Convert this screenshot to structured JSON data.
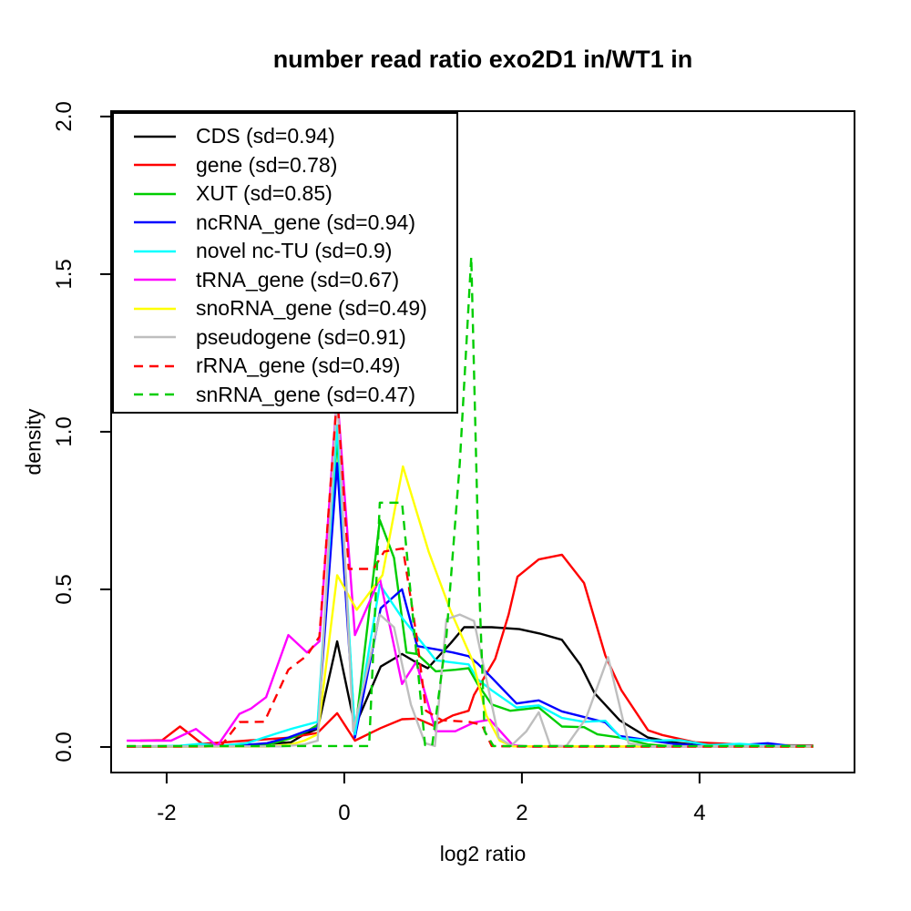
{
  "title": "number read ratio exo2D1 in/WT1 in",
  "chart_data": {
    "type": "line",
    "title": "number read ratio exo2D1 in/WT1 in",
    "xlabel": "log2 ratio",
    "ylabel": "density",
    "xlim": [
      -2.625,
      5.745
    ],
    "ylim": [
      -0.081,
      2.017
    ],
    "x_ticks": [
      -2,
      0,
      2,
      4
    ],
    "y_ticks": [
      "0.0",
      "0.5",
      "1.0",
      "1.5",
      "2.0"
    ],
    "grid": false,
    "legend_position": "topleft",
    "background": "#ffffff",
    "axis_color": "#000000",
    "series": [
      {
        "name": "CDS",
        "label": "CDS (sd=0.94)",
        "color": "#000000",
        "dash": false,
        "points": [
          [
            -2.45,
            0.002
          ],
          [
            -2.0,
            0.002
          ],
          [
            -1.5,
            0.003
          ],
          [
            -1.1,
            0.005
          ],
          [
            -0.85,
            0.01
          ],
          [
            -0.6,
            0.015
          ],
          [
            -0.45,
            0.04
          ],
          [
            -0.3,
            0.058
          ],
          [
            -0.08,
            0.335
          ],
          [
            0.12,
            0.065
          ],
          [
            0.41,
            0.255
          ],
          [
            0.65,
            0.295
          ],
          [
            0.8,
            0.27
          ],
          [
            0.94,
            0.25
          ],
          [
            1.2,
            0.33
          ],
          [
            1.35,
            0.38
          ],
          [
            1.66,
            0.38
          ],
          [
            1.97,
            0.374
          ],
          [
            2.2,
            0.36
          ],
          [
            2.45,
            0.34
          ],
          [
            2.66,
            0.26
          ],
          [
            2.82,
            0.17
          ],
          [
            3.1,
            0.085
          ],
          [
            3.42,
            0.03
          ],
          [
            3.7,
            0.015
          ],
          [
            4.0,
            0.005
          ],
          [
            4.4,
            0.003
          ],
          [
            5.28,
            0.002
          ]
        ]
      },
      {
        "name": "gene",
        "label": "gene (sd=0.78)",
        "color": "#ff0000",
        "dash": false,
        "points": [
          [
            -2.3,
            0.02
          ],
          [
            -2.05,
            0.022
          ],
          [
            -1.85,
            0.065
          ],
          [
            -1.6,
            0.01
          ],
          [
            -1.35,
            0.015
          ],
          [
            -1.1,
            0.02
          ],
          [
            -0.85,
            0.025
          ],
          [
            -0.6,
            0.03
          ],
          [
            -0.3,
            0.045
          ],
          [
            -0.08,
            0.107
          ],
          [
            0.12,
            0.02
          ],
          [
            0.41,
            0.06
          ],
          [
            0.65,
            0.088
          ],
          [
            0.82,
            0.09
          ],
          [
            1.0,
            0.068
          ],
          [
            1.22,
            0.1
          ],
          [
            1.4,
            0.115
          ],
          [
            1.46,
            0.165
          ],
          [
            1.7,
            0.28
          ],
          [
            1.85,
            0.42
          ],
          [
            1.95,
            0.54
          ],
          [
            2.19,
            0.595
          ],
          [
            2.45,
            0.61
          ],
          [
            2.7,
            0.52
          ],
          [
            2.94,
            0.29
          ],
          [
            3.12,
            0.18
          ],
          [
            3.42,
            0.053
          ],
          [
            3.58,
            0.038
          ],
          [
            3.95,
            0.015
          ],
          [
            4.3,
            0.01
          ],
          [
            4.7,
            0.006
          ],
          [
            5.28,
            0.005
          ]
        ]
      },
      {
        "name": "XUT",
        "label": "XUT (sd=0.85)",
        "color": "#00cd00",
        "dash": false,
        "points": [
          [
            -2.45,
            0.001
          ],
          [
            -1.5,
            0.002
          ],
          [
            -1.1,
            0.004
          ],
          [
            -0.85,
            0.008
          ],
          [
            -0.6,
            0.028
          ],
          [
            -0.42,
            0.05
          ],
          [
            -0.3,
            0.07
          ],
          [
            -0.08,
            0.985
          ],
          [
            0.12,
            0.04
          ],
          [
            0.4,
            0.72
          ],
          [
            0.56,
            0.6
          ],
          [
            0.7,
            0.3
          ],
          [
            0.82,
            0.295
          ],
          [
            1.03,
            0.24
          ],
          [
            1.25,
            0.245
          ],
          [
            1.4,
            0.25
          ],
          [
            1.5,
            0.2
          ],
          [
            1.66,
            0.135
          ],
          [
            1.87,
            0.115
          ],
          [
            2.19,
            0.125
          ],
          [
            2.45,
            0.065
          ],
          [
            2.7,
            0.063
          ],
          [
            2.85,
            0.04
          ],
          [
            3.1,
            0.03
          ],
          [
            3.42,
            0.008
          ],
          [
            3.7,
            0.002
          ],
          [
            5.28,
            0.001
          ]
        ]
      },
      {
        "name": "ncRNA_gene",
        "label": "ncRNA_gene (sd=0.94)",
        "color": "#0000ff",
        "dash": false,
        "points": [
          [
            -2.45,
            0.001
          ],
          [
            -1.4,
            0.002
          ],
          [
            -1.05,
            0.008
          ],
          [
            -0.87,
            0.012
          ],
          [
            -0.63,
            0.03
          ],
          [
            -0.42,
            0.052
          ],
          [
            -0.3,
            0.06
          ],
          [
            -0.08,
            0.9
          ],
          [
            0.12,
            0.03
          ],
          [
            0.41,
            0.44
          ],
          [
            0.65,
            0.5
          ],
          [
            0.82,
            0.32
          ],
          [
            1.03,
            0.31
          ],
          [
            1.22,
            0.3
          ],
          [
            1.4,
            0.288
          ],
          [
            1.5,
            0.265
          ],
          [
            1.66,
            0.22
          ],
          [
            1.94,
            0.138
          ],
          [
            2.19,
            0.148
          ],
          [
            2.45,
            0.113
          ],
          [
            2.7,
            0.095
          ],
          [
            2.94,
            0.078
          ],
          [
            3.1,
            0.035
          ],
          [
            3.42,
            0.022
          ],
          [
            3.7,
            0.01
          ],
          [
            4.0,
            0.005
          ],
          [
            4.35,
            0.004
          ],
          [
            4.77,
            0.012
          ],
          [
            5.0,
            0.004
          ],
          [
            5.28,
            0.002
          ]
        ]
      },
      {
        "name": "novel nc-TU",
        "label": "novel nc-TU (sd=0.9)",
        "color": "#00ffff",
        "dash": false,
        "points": [
          [
            -2.45,
            0.001
          ],
          [
            -1.85,
            0.004
          ],
          [
            -1.62,
            0.01
          ],
          [
            -1.4,
            0.004
          ],
          [
            -1.1,
            0.012
          ],
          [
            -0.77,
            0.042
          ],
          [
            -0.59,
            0.058
          ],
          [
            -0.3,
            0.08
          ],
          [
            -0.08,
            1.02
          ],
          [
            0.12,
            0.04
          ],
          [
            0.4,
            0.515
          ],
          [
            0.65,
            0.41
          ],
          [
            0.82,
            0.35
          ],
          [
            1.03,
            0.275
          ],
          [
            1.22,
            0.268
          ],
          [
            1.4,
            0.262
          ],
          [
            1.5,
            0.215
          ],
          [
            1.66,
            0.18
          ],
          [
            1.94,
            0.125
          ],
          [
            2.19,
            0.132
          ],
          [
            2.45,
            0.092
          ],
          [
            2.7,
            0.08
          ],
          [
            2.94,
            0.083
          ],
          [
            3.12,
            0.028
          ],
          [
            3.42,
            0.02
          ],
          [
            3.78,
            0.022
          ],
          [
            4.1,
            0.006
          ],
          [
            4.45,
            0.01
          ],
          [
            4.77,
            0.004
          ],
          [
            5.28,
            0.003
          ]
        ]
      },
      {
        "name": "tRNA_gene",
        "label": "tRNA_gene (sd=0.67)",
        "color": "#ff00ff",
        "dash": false,
        "points": [
          [
            -2.45,
            0.02
          ],
          [
            -1.95,
            0.02
          ],
          [
            -1.67,
            0.057
          ],
          [
            -1.43,
            0.003
          ],
          [
            -1.18,
            0.105
          ],
          [
            -1.05,
            0.122
          ],
          [
            -0.88,
            0.158
          ],
          [
            -0.63,
            0.355
          ],
          [
            -0.42,
            0.3
          ],
          [
            -0.28,
            0.335
          ],
          [
            -0.08,
            1.12
          ],
          [
            0.12,
            0.355
          ],
          [
            0.4,
            0.535
          ],
          [
            0.65,
            0.2
          ],
          [
            0.81,
            0.27
          ],
          [
            1.03,
            0.05
          ],
          [
            1.25,
            0.05
          ],
          [
            1.46,
            0.078
          ],
          [
            1.64,
            0.087
          ],
          [
            1.9,
            0.005
          ],
          [
            2.1,
            0.001
          ],
          [
            5.28,
            0.001
          ]
        ]
      },
      {
        "name": "snoRNA_gene",
        "label": "snoRNA_gene (sd=0.49)",
        "color": "#ffff00",
        "dash": false,
        "points": [
          [
            -2.45,
            0.001
          ],
          [
            -0.85,
            0.001
          ],
          [
            -0.6,
            0.008
          ],
          [
            -0.45,
            0.02
          ],
          [
            -0.3,
            0.04
          ],
          [
            -0.08,
            0.545
          ],
          [
            0.14,
            0.435
          ],
          [
            0.43,
            0.545
          ],
          [
            0.66,
            0.89
          ],
          [
            0.95,
            0.62
          ],
          [
            1.2,
            0.43
          ],
          [
            1.45,
            0.27
          ],
          [
            1.6,
            0.1
          ],
          [
            1.75,
            0.02
          ],
          [
            1.9,
            0.002
          ],
          [
            5.28,
            0.001
          ]
        ]
      },
      {
        "name": "pseudogene",
        "label": "pseudogene (sd=0.91)",
        "color": "#bebebe",
        "dash": false,
        "points": [
          [
            -2.45,
            0.002
          ],
          [
            -0.7,
            0.002
          ],
          [
            -0.45,
            0.008
          ],
          [
            -0.3,
            0.02
          ],
          [
            -0.08,
            1.12
          ],
          [
            0.1,
            0.05
          ],
          [
            0.4,
            0.42
          ],
          [
            0.56,
            0.38
          ],
          [
            0.75,
            0.135
          ],
          [
            0.91,
            0.012
          ],
          [
            1.02,
            0.003
          ],
          [
            1.15,
            0.405
          ],
          [
            1.3,
            0.42
          ],
          [
            1.46,
            0.4
          ],
          [
            1.74,
            0.03
          ],
          [
            1.88,
            0.004
          ],
          [
            2.05,
            0.05
          ],
          [
            2.19,
            0.11
          ],
          [
            2.32,
            0.004
          ],
          [
            2.5,
            0.003
          ],
          [
            2.72,
            0.09
          ],
          [
            2.97,
            0.285
          ],
          [
            3.2,
            0.012
          ],
          [
            3.45,
            0.002
          ],
          [
            5.28,
            0.002
          ]
        ]
      },
      {
        "name": "rRNA_gene",
        "label": "rRNA_gene (sd=0.49)",
        "color": "#ff0000",
        "dash": true,
        "points": [
          [
            -2.45,
            0.001
          ],
          [
            -1.6,
            0.002
          ],
          [
            -1.38,
            0.006
          ],
          [
            -1.18,
            0.079
          ],
          [
            -0.9,
            0.08
          ],
          [
            -0.63,
            0.245
          ],
          [
            -0.42,
            0.29
          ],
          [
            -0.28,
            0.35
          ],
          [
            -0.08,
            1.12
          ],
          [
            0.05,
            0.565
          ],
          [
            0.33,
            0.565
          ],
          [
            0.45,
            0.62
          ],
          [
            0.66,
            0.63
          ],
          [
            0.82,
            0.34
          ],
          [
            0.92,
            0.115
          ],
          [
            1.1,
            0.085
          ],
          [
            1.4,
            0.08
          ],
          [
            1.55,
            0.07
          ],
          [
            1.66,
            0.003
          ],
          [
            2.0,
            0.001
          ],
          [
            5.28,
            0.001
          ]
        ]
      },
      {
        "name": "snRNA_gene",
        "label": "snRNA_gene (sd=0.47)",
        "color": "#00cd00",
        "dash": true,
        "points": [
          [
            -2.45,
            0.003
          ],
          [
            0.28,
            0.003
          ],
          [
            0.4,
            0.775
          ],
          [
            0.65,
            0.775
          ],
          [
            0.91,
            0.006
          ],
          [
            0.99,
            0.005
          ],
          [
            1.15,
            0.35
          ],
          [
            1.3,
            0.9
          ],
          [
            1.43,
            1.555
          ],
          [
            1.52,
            0.5
          ],
          [
            1.58,
            0.05
          ],
          [
            1.68,
            0.003
          ],
          [
            5.28,
            0.003
          ]
        ]
      }
    ]
  }
}
